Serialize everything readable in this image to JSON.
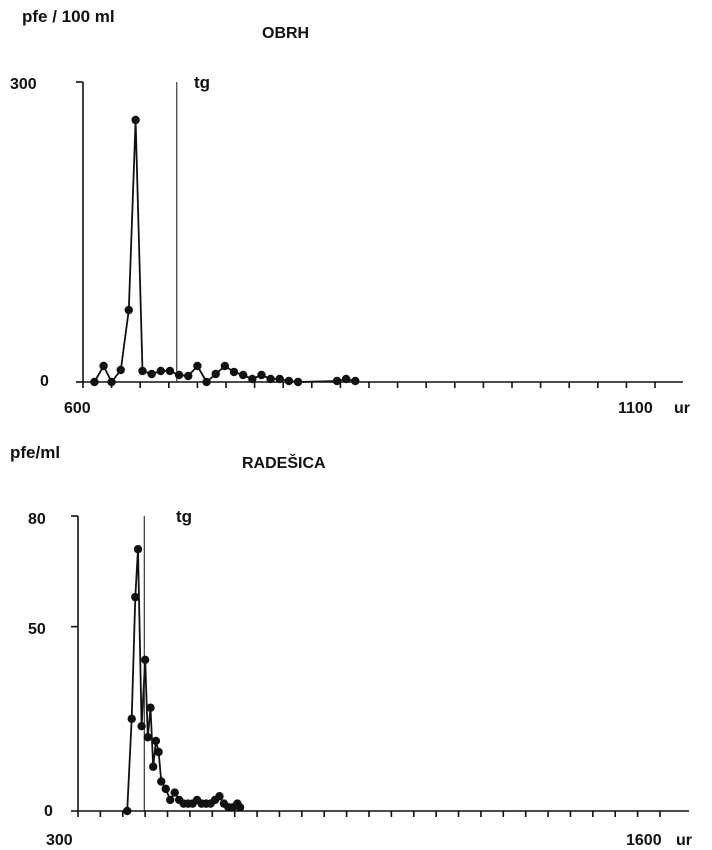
{
  "chart_data": [
    {
      "type": "line",
      "title": "OBRH",
      "ylabel": "pfe / 100 ml",
      "xlabel": "",
      "x_unit": "ur",
      "xlim": [
        600,
        1100
      ],
      "ylim": [
        0,
        300
      ],
      "x_tick_labels": [
        "600",
        "1100"
      ],
      "y_tick_labels": [
        "0",
        "300"
      ],
      "marker_label": "tg",
      "marker_x": 682,
      "grid": false,
      "series": [
        {
          "points": [
            [
              610,
              0
            ],
            [
              618,
              16
            ],
            [
              625,
              0
            ],
            [
              633,
              12
            ],
            [
              640,
              72
            ],
            [
              646,
              262
            ],
            [
              652,
              11
            ],
            [
              660,
              8
            ],
            [
              668,
              11
            ],
            [
              676,
              11
            ],
            [
              684,
              7
            ],
            [
              692,
              6
            ],
            [
              700,
              16
            ],
            [
              708,
              0
            ],
            [
              716,
              8
            ],
            [
              724,
              16
            ],
            [
              732,
              10
            ],
            [
              740,
              7
            ],
            [
              748,
              3
            ],
            [
              756,
              7
            ],
            [
              764,
              3
            ],
            [
              772,
              3
            ],
            [
              780,
              1
            ],
            [
              788,
              0
            ],
            [
              822,
              1
            ],
            [
              830,
              3
            ],
            [
              838,
              1
            ]
          ]
        }
      ]
    },
    {
      "type": "line",
      "title": "RADEŠICA",
      "ylabel": "pfe/ml",
      "xlabel": "",
      "x_unit": "ur",
      "xlim": [
        300,
        1600
      ],
      "ylim": [
        0,
        80
      ],
      "x_tick_labels": [
        "300",
        "1600"
      ],
      "y_tick_labels": [
        "0",
        "50",
        "80"
      ],
      "marker_label": "tg",
      "marker_x": 448,
      "grid": false,
      "series": [
        {
          "points": [
            [
              410,
              0
            ],
            [
              420,
              25
            ],
            [
              428,
              58
            ],
            [
              434,
              71
            ],
            [
              442,
              23
            ],
            [
              450,
              41
            ],
            [
              456,
              20
            ],
            [
              462,
              28
            ],
            [
              468,
              12
            ],
            [
              474,
              19
            ],
            [
              480,
              16
            ],
            [
              486,
              8
            ],
            [
              496,
              6
            ],
            [
              506,
              3
            ],
            [
              516,
              5
            ],
            [
              526,
              3
            ],
            [
              536,
              2
            ],
            [
              546,
              2
            ],
            [
              556,
              2
            ],
            [
              566,
              3
            ],
            [
              576,
              2
            ],
            [
              586,
              2
            ],
            [
              596,
              2
            ],
            [
              606,
              3
            ],
            [
              616,
              4
            ],
            [
              626,
              2
            ],
            [
              636,
              1
            ],
            [
              646,
              1
            ],
            [
              656,
              2
            ],
            [
              662,
              1
            ]
          ]
        }
      ]
    }
  ]
}
